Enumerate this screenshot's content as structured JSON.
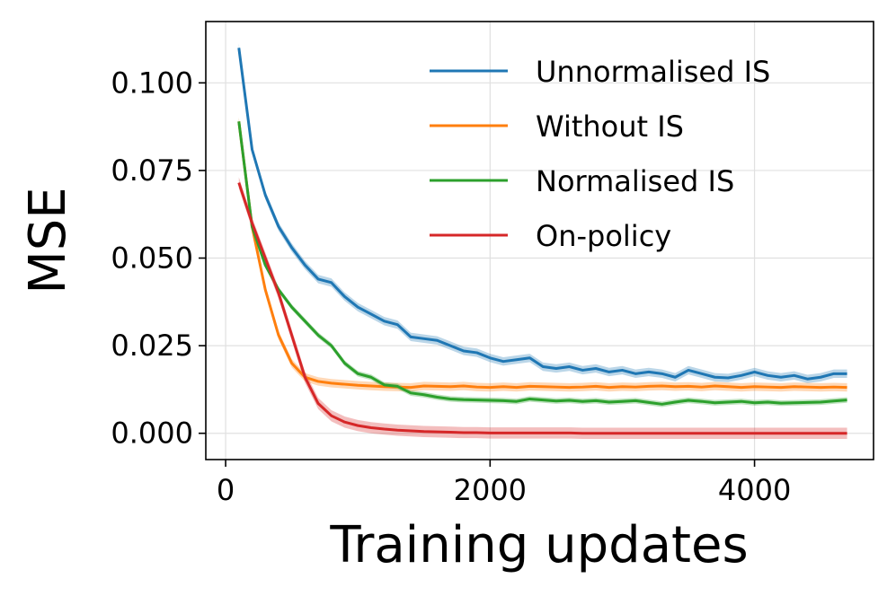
{
  "chart_data": {
    "type": "line",
    "title": "",
    "xlabel": "Training updates",
    "ylabel": "MSE",
    "xlim": [
      -150,
      4900
    ],
    "ylim": [
      -0.0075,
      0.1175
    ],
    "xticks": [
      0,
      2000,
      4000
    ],
    "xtick_labels": [
      "0",
      "2000",
      "4000"
    ],
    "yticks": [
      0.0,
      0.025,
      0.05,
      0.075,
      0.1
    ],
    "ytick_labels": [
      "0.000",
      "0.025",
      "0.050",
      "0.075",
      "0.100"
    ],
    "grid": true,
    "legend_position": "top-right",
    "x": [
      100,
      200,
      300,
      400,
      500,
      600,
      700,
      800,
      900,
      1000,
      1100,
      1200,
      1300,
      1400,
      1500,
      1600,
      1700,
      1800,
      1900,
      2000,
      2100,
      2200,
      2300,
      2400,
      2500,
      2600,
      2700,
      2800,
      2900,
      3000,
      3100,
      3200,
      3300,
      3400,
      3500,
      3600,
      3700,
      3800,
      3900,
      4000,
      4100,
      4200,
      4300,
      4400,
      4500,
      4600,
      4700
    ],
    "series": [
      {
        "name": "Unnormalised IS",
        "color": "#1f77b4",
        "band": 0.0012,
        "values": [
          0.11,
          0.081,
          0.068,
          0.059,
          0.053,
          0.048,
          0.044,
          0.043,
          0.039,
          0.036,
          0.034,
          0.032,
          0.031,
          0.0275,
          0.027,
          0.0265,
          0.025,
          0.0235,
          0.023,
          0.0215,
          0.0205,
          0.021,
          0.0215,
          0.019,
          0.0185,
          0.019,
          0.018,
          0.0185,
          0.0175,
          0.018,
          0.017,
          0.0175,
          0.017,
          0.016,
          0.018,
          0.017,
          0.016,
          0.0158,
          0.0165,
          0.0175,
          0.0165,
          0.016,
          0.0165,
          0.0155,
          0.016,
          0.017,
          0.017
        ]
      },
      {
        "name": "Without IS",
        "color": "#ff7f0e",
        "band": 0.0012,
        "values": [
          0.089,
          0.059,
          0.041,
          0.028,
          0.02,
          0.016,
          0.0148,
          0.0143,
          0.014,
          0.0137,
          0.0135,
          0.0133,
          0.0132,
          0.0131,
          0.0135,
          0.0134,
          0.0133,
          0.0135,
          0.0132,
          0.0131,
          0.0133,
          0.0131,
          0.0134,
          0.0133,
          0.0132,
          0.0131,
          0.0132,
          0.0134,
          0.0131,
          0.0133,
          0.0132,
          0.0134,
          0.0135,
          0.0133,
          0.0134,
          0.0132,
          0.0135,
          0.0133,
          0.0131,
          0.0133,
          0.0132,
          0.0131,
          0.0133,
          0.0132,
          0.0131,
          0.0132,
          0.0131
        ]
      },
      {
        "name": "Normalised IS",
        "color": "#2ca02c",
        "band": 0.0008,
        "values": [
          0.089,
          0.059,
          0.048,
          0.041,
          0.036,
          0.032,
          0.028,
          0.025,
          0.02,
          0.017,
          0.016,
          0.0138,
          0.0134,
          0.0115,
          0.011,
          0.0103,
          0.0098,
          0.0096,
          0.0095,
          0.0094,
          0.0093,
          0.0091,
          0.0098,
          0.0095,
          0.0092,
          0.0094,
          0.0091,
          0.0093,
          0.0089,
          0.0091,
          0.0093,
          0.0088,
          0.0083,
          0.0089,
          0.0094,
          0.0091,
          0.0087,
          0.0089,
          0.0091,
          0.0087,
          0.0089,
          0.0086,
          0.0087,
          0.0088,
          0.0089,
          0.0092,
          0.0095
        ]
      },
      {
        "name": "On-policy",
        "color": "#d62728",
        "band": 0.0016,
        "values": [
          0.0715,
          0.06,
          0.05,
          0.04,
          0.028,
          0.016,
          0.0085,
          0.005,
          0.0032,
          0.0022,
          0.0016,
          0.0012,
          0.0009,
          0.0007,
          0.0005,
          0.0004,
          0.0003,
          0.0002,
          0.0002,
          0.0001,
          0.0001,
          0.0001,
          0.0001,
          0.0001,
          0.0001,
          0.0001,
          0.0,
          0.0,
          0.0,
          0.0,
          0.0,
          0.0,
          0.0,
          0.0,
          0.0,
          0.0,
          0.0,
          0.0,
          0.0,
          0.0,
          0.0,
          0.0,
          0.0,
          0.0,
          0.0,
          0.0,
          0.0
        ]
      }
    ]
  }
}
